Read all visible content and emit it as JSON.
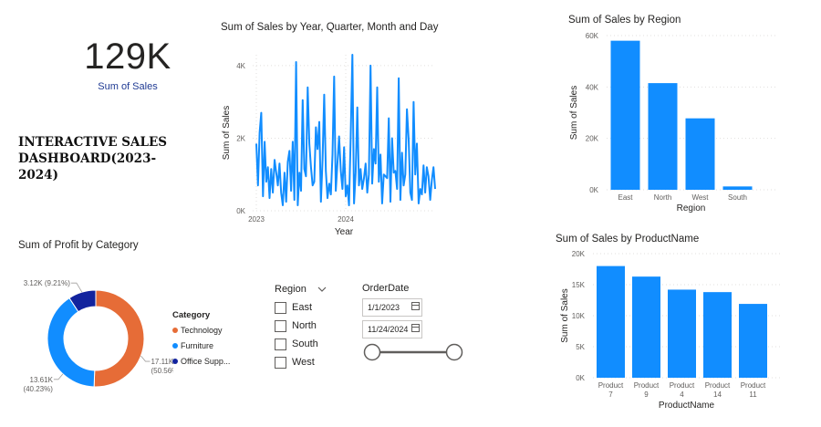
{
  "kpi": {
    "value": "129K",
    "label": "Sum of Sales"
  },
  "dashboard_title": "INTERACTIVE SALES DASHBOARD(2023-2024)",
  "slicers": {
    "region": {
      "header": "Region",
      "options": [
        "East",
        "North",
        "South",
        "West"
      ]
    },
    "orderdate": {
      "header": "OrderDate",
      "start": "1/1/2023",
      "end": "11/24/2024",
      "slider_start": 0,
      "slider_end": 1
    }
  },
  "colors": {
    "primary": "#118dff",
    "orange": "#e66c37",
    "navy": "#12239e",
    "grid": "#e1dfdd"
  },
  "icons": {
    "chevron": "chevron-down-icon",
    "calendar": "calendar-icon"
  },
  "chart_data": [
    {
      "type": "line",
      "title": "Sum of Sales by Year, Quarter, Month and Day",
      "xlabel": "Year",
      "ylabel": "Sum of Sales",
      "ylim": [
        0,
        4300
      ],
      "yticks": [
        0,
        2000,
        4000
      ],
      "ytick_labels": [
        "0K",
        "2K",
        "4K"
      ],
      "xticks": [
        "2023",
        "2024"
      ],
      "xtick_positions": [
        0,
        0.5
      ],
      "values": [
        1850,
        700,
        2150,
        2700,
        400,
        1900,
        800,
        1200,
        350,
        1150,
        500,
        1400,
        1050,
        700,
        1300,
        500,
        150,
        1050,
        250,
        1350,
        1650,
        550,
        1900,
        300,
        4100,
        150,
        1050,
        550,
        3050,
        1150,
        950,
        3400,
        1850,
        1200,
        700,
        800,
        2300,
        1700,
        2450,
        250,
        1400,
        3200,
        1100,
        350,
        750,
        450,
        1550,
        3700,
        550,
        1300,
        2050,
        1100,
        600,
        1750,
        400,
        700,
        150,
        2000,
        4300,
        200,
        1050,
        2850,
        700,
        1150,
        600,
        900,
        1300,
        500,
        1000,
        4000,
        750,
        1700,
        1300,
        3400,
        800,
        1550,
        200,
        1000,
        950,
        900,
        2550,
        250,
        2000,
        1050,
        1100,
        600,
        3650,
        300,
        1600,
        700,
        1000,
        2800,
        1950,
        500,
        300,
        3000,
        1000,
        1850,
        200,
        600,
        450,
        1250,
        500,
        1200,
        950,
        300,
        850,
        1200,
        600
      ],
      "grid": true
    },
    {
      "type": "bar",
      "title": "Sum of Sales by Region",
      "categories": [
        "East",
        "North",
        "West",
        "South"
      ],
      "values": [
        58000,
        41500,
        27800,
        1300
      ],
      "xlabel": "Region",
      "ylabel": "Sum of Sales",
      "ylim": [
        0,
        60000
      ],
      "yticks": [
        0,
        20000,
        40000,
        60000
      ],
      "ytick_labels": [
        "0K",
        "20K",
        "40K",
        "60K"
      ],
      "grid": true
    },
    {
      "type": "bar",
      "title": "Sum of Sales by ProductName",
      "categories": [
        "Product 7",
        "Product 9",
        "Product 4",
        "Product 14",
        "Product 11"
      ],
      "category_lines": [
        [
          "Product",
          "7"
        ],
        [
          "Product",
          "9"
        ],
        [
          "Product",
          "4"
        ],
        [
          "Product",
          "14"
        ],
        [
          "Product",
          "11"
        ]
      ],
      "values": [
        18000,
        16300,
        14200,
        13800,
        11900
      ],
      "xlabel": "ProductName",
      "ylabel": "Sum of Sales",
      "ylim": [
        0,
        20000
      ],
      "yticks": [
        0,
        5000,
        10000,
        15000,
        20000
      ],
      "ytick_labels": [
        "0K",
        "5K",
        "10K",
        "15K",
        "20K"
      ],
      "grid": true
    },
    {
      "type": "pie",
      "title": "Sum of Profit by Category",
      "legend_title": "Category",
      "legend_position": "right",
      "slices": [
        {
          "label": "Technology",
          "legend_label": "Technology",
          "value": 17110,
          "value_label": "17.11K",
          "pct_label": "(50.56%)",
          "color": "#e66c37"
        },
        {
          "label": "Furniture",
          "legend_label": "Furniture",
          "value": 13610,
          "value_label": "13.61K",
          "pct_label": "(40.23%)",
          "color": "#118dff"
        },
        {
          "label": "Office Supplies",
          "legend_label": "Office Supp...",
          "value": 3120,
          "value_label": "3.12K",
          "pct_label": "(9.21%)",
          "color": "#12239e"
        }
      ]
    }
  ]
}
